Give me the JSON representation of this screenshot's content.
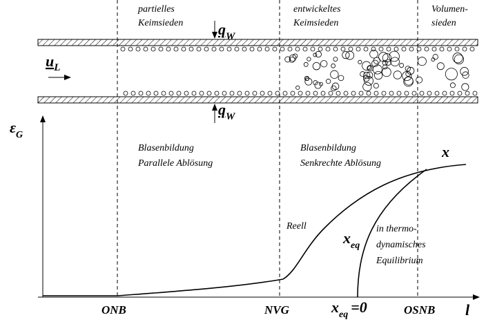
{
  "zones": {
    "partial": [
      "partielles",
      "Keimsieden"
    ],
    "developed": [
      "entwickeltes",
      "Keimsieden"
    ],
    "bulk": [
      "Volumen-",
      "sieden"
    ]
  },
  "heat_flux_top": {
    "symbol": "q",
    "subscript": "W"
  },
  "heat_flux_bottom": {
    "symbol": "q",
    "subscript": "W"
  },
  "velocity": {
    "symbol": "u",
    "subscript": "L"
  },
  "y_axis": {
    "symbol": "ε",
    "subscript": "G"
  },
  "region_labels": {
    "parallel": [
      "Blasenbildung",
      "Parallele Ablösung"
    ],
    "perpendicular": [
      "Blasenbildung",
      "Senkrechte Ablösung"
    ]
  },
  "curves": {
    "x": "x",
    "real": "Reell",
    "equilibrium": {
      "symbol": "x",
      "subscript": "eq"
    },
    "equilibrium_note": [
      "in thermo-",
      "dynamisches",
      "Equilibrium"
    ]
  },
  "x_axis": {
    "onb": "ONB",
    "nvg": "NVG",
    "xeq0": {
      "symbol": "x",
      "subscript": "eq",
      "suffix": "=0"
    },
    "osnb": "OSNB",
    "label": "l"
  }
}
